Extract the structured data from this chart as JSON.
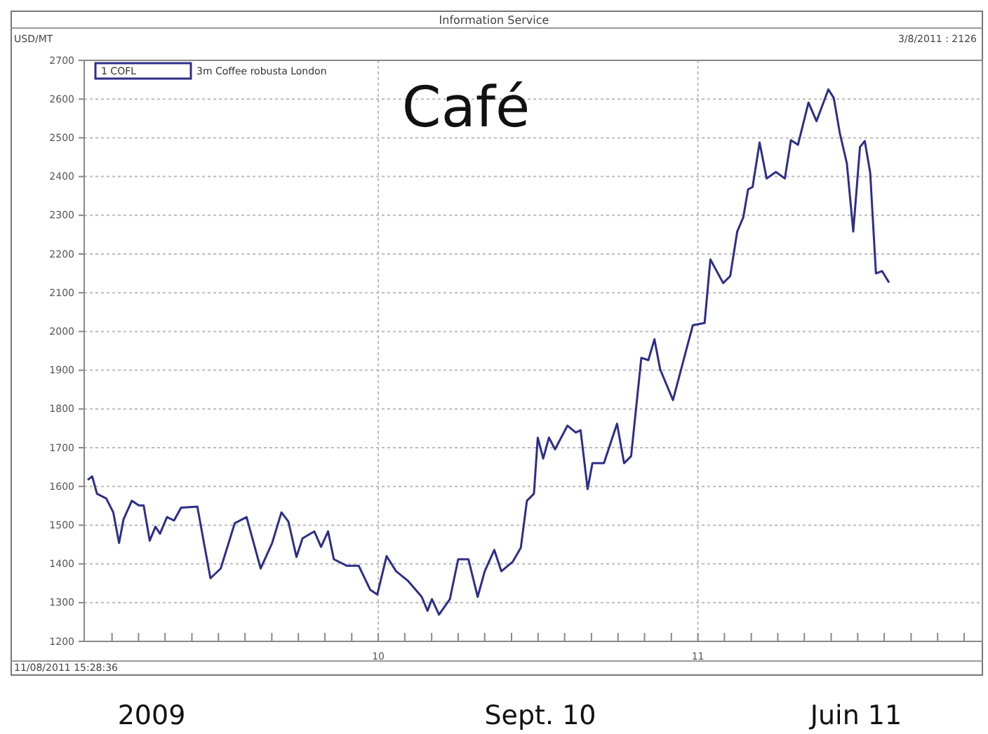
{
  "chart_data": {
    "type": "line",
    "title": "Café",
    "subtitle": "Information Service",
    "ylabel": "USD/MT",
    "legend_title": "1 COFL",
    "legend": "top left",
    "grid": true,
    "marker": "none",
    "line_style": "solid",
    "annotations": [
      "3/8/2011 : 2126",
      "11/08/2011 15:28:36",
      "2009",
      "Sept. 10",
      "Juin 11"
    ],
    "xlim": [
      2009.08,
      2011.89
    ],
    "ylim": [
      1200,
      2700
    ],
    "yticks": [
      1200,
      1300,
      1400,
      1500,
      1600,
      1700,
      1800,
      1900,
      2000,
      2100,
      2200,
      2300,
      2400,
      2500,
      2600,
      2700
    ],
    "xticks": [
      {
        "value": 2009.167,
        "label": null
      },
      {
        "value": 2009.25,
        "label": null
      },
      {
        "value": 2009.333,
        "label": null
      },
      {
        "value": 2009.417,
        "label": null
      },
      {
        "value": 2009.5,
        "label": null
      },
      {
        "value": 2009.583,
        "label": null
      },
      {
        "value": 2009.667,
        "label": null
      },
      {
        "value": 2009.75,
        "label": null
      },
      {
        "value": 2009.833,
        "label": null
      },
      {
        "value": 2009.917,
        "label": null
      },
      {
        "value": 2010,
        "label": "10"
      },
      {
        "value": 2010.083,
        "label": null
      },
      {
        "value": 2010.167,
        "label": null
      },
      {
        "value": 2010.25,
        "label": null
      },
      {
        "value": 2010.333,
        "label": null
      },
      {
        "value": 2010.417,
        "label": null
      },
      {
        "value": 2010.5,
        "label": null
      },
      {
        "value": 2010.583,
        "label": null
      },
      {
        "value": 2010.667,
        "label": null
      },
      {
        "value": 2010.75,
        "label": null
      },
      {
        "value": 2010.833,
        "label": null
      },
      {
        "value": 2010.917,
        "label": null
      },
      {
        "value": 2011,
        "label": "11"
      },
      {
        "value": 2011.083,
        "label": null
      },
      {
        "value": 2011.167,
        "label": null
      },
      {
        "value": 2011.25,
        "label": null
      },
      {
        "value": 2011.333,
        "label": null
      },
      {
        "value": 2011.417,
        "label": null
      },
      {
        "value": 2011.5,
        "label": null
      },
      {
        "value": 2011.583,
        "label": null
      },
      {
        "value": 2011.667,
        "label": null
      },
      {
        "value": 2011.75,
        "label": null
      },
      {
        "value": 2011.833,
        "label": null
      }
    ],
    "series": [
      {
        "name": "3m Coffee robusta London",
        "color": "#2e2e88",
        "x": [
          2009.091,
          2009.105,
          2009.12,
          2009.149,
          2009.171,
          2009.189,
          2009.203,
          2009.229,
          2009.251,
          2009.266,
          2009.285,
          2009.303,
          2009.317,
          2009.339,
          2009.361,
          2009.383,
          2009.434,
          2009.452,
          2009.475,
          2009.507,
          2009.551,
          2009.588,
          2009.632,
          2009.668,
          2009.697,
          2009.719,
          2009.744,
          2009.763,
          2009.8,
          2009.821,
          2009.843,
          2009.861,
          2009.902,
          2009.939,
          2009.975,
          2009.997,
          2010.026,
          2010.056,
          2010.092,
          2010.136,
          2010.154,
          2010.168,
          2010.19,
          2010.224,
          2010.25,
          2010.282,
          2010.311,
          2010.333,
          2010.363,
          2010.385,
          2010.421,
          2010.446,
          2010.465,
          2010.487,
          2010.499,
          2010.516,
          2010.534,
          2010.553,
          2010.592,
          2010.618,
          2010.633,
          2010.655,
          2010.67,
          2010.706,
          2010.747,
          2010.769,
          2010.791,
          2010.823,
          2010.845,
          2010.864,
          2010.882,
          2010.922,
          2010.984,
          2011.021,
          2011.039,
          2011.079,
          2011.101,
          2011.123,
          2011.142,
          2011.157,
          2011.171,
          2011.193,
          2011.215,
          2011.244,
          2011.272,
          2011.291,
          2011.313,
          2011.346,
          2011.371,
          2011.408,
          2011.425,
          2011.444,
          2011.466,
          2011.486,
          2011.507,
          2011.522,
          2011.539,
          2011.557,
          2011.576,
          2011.598
        ],
        "values": [
          1617,
          1626,
          1581,
          1569,
          1533,
          1454,
          1515,
          1563,
          1551,
          1551,
          1460,
          1496,
          1478,
          1521,
          1512,
          1545,
          1548,
          1466,
          1363,
          1388,
          1505,
          1521,
          1388,
          1454,
          1533,
          1509,
          1418,
          1466,
          1484,
          1444,
          1484,
          1412,
          1395,
          1395,
          1333,
          1321,
          1420,
          1381,
          1357,
          1315,
          1279,
          1309,
          1269,
          1309,
          1412,
          1412,
          1315,
          1381,
          1436,
          1381,
          1406,
          1442,
          1563,
          1581,
          1726,
          1672,
          1726,
          1696,
          1757,
          1739,
          1745,
          1593,
          1660,
          1660,
          1762,
          1660,
          1678,
          1932,
          1926,
          1980,
          1902,
          1823,
          2016,
          2022,
          2186,
          2125,
          2143,
          2258,
          2295,
          2367,
          2373,
          2488,
          2395,
          2412,
          2395,
          2494,
          2482,
          2591,
          2543,
          2625,
          2603,
          2512,
          2434,
          2258,
          2476,
          2492,
          2410,
          2150,
          2156,
          2126
        ]
      }
    ]
  }
}
